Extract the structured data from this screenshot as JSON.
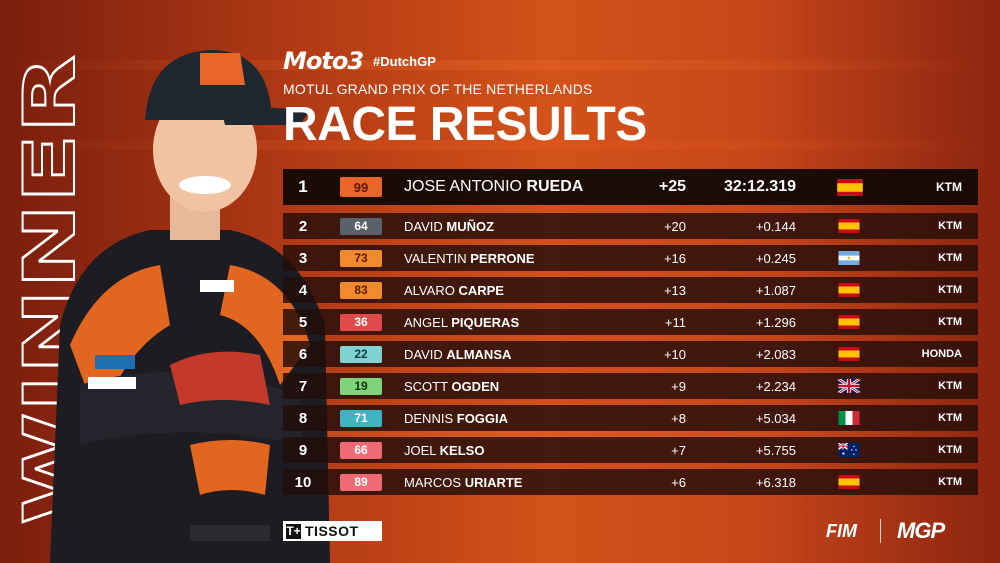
{
  "graphic": {
    "side_text": "WINNER",
    "brand": "Moto3",
    "hashtag": "#DutchGP",
    "event_name": "MOTUL GRAND PRIX OF THE NETHERLANDS",
    "title": "RACE RESULTS"
  },
  "results": [
    {
      "pos": "1",
      "number": "99",
      "first": "JOSE ANTONIO",
      "last": "RUEDA",
      "points": "+25",
      "time": "32:12.319",
      "flag": "spain-flag",
      "team": "KTM",
      "badge_bg": "#e8662a",
      "badge_fg": "#5a1a08"
    },
    {
      "pos": "2",
      "number": "64",
      "first": "DAVID",
      "last": "MUÑOZ",
      "points": "+20",
      "time": "+0.144",
      "flag": "spain-flag",
      "team": "KTM",
      "badge_bg": "#59616a",
      "badge_fg": "#ffffff"
    },
    {
      "pos": "3",
      "number": "73",
      "first": "VALENTIN",
      "last": "PERRONE",
      "points": "+16",
      "time": "+0.245",
      "flag": "argentina-flag",
      "team": "KTM",
      "badge_bg": "#f08a2c",
      "badge_fg": "#5a1a08"
    },
    {
      "pos": "4",
      "number": "83",
      "first": "ALVARO",
      "last": "CARPE",
      "points": "+13",
      "time": "+1.087",
      "flag": "spain-flag",
      "team": "KTM",
      "badge_bg": "#f08a2c",
      "badge_fg": "#5a1a08"
    },
    {
      "pos": "5",
      "number": "36",
      "first": "ANGEL",
      "last": "PIQUERAS",
      "points": "+11",
      "time": "+1.296",
      "flag": "spain-flag",
      "team": "KTM",
      "badge_bg": "#e04a4a",
      "badge_fg": "#ffffff"
    },
    {
      "pos": "6",
      "number": "22",
      "first": "DAVID",
      "last": "ALMANSA",
      "points": "+10",
      "time": "+2.083",
      "flag": "spain-flag",
      "team": "HONDA",
      "badge_bg": "#7fd3d3",
      "badge_fg": "#0f3b3b"
    },
    {
      "pos": "7",
      "number": "19",
      "first": "SCOTT",
      "last": "OGDEN",
      "points": "+9",
      "time": "+2.234",
      "flag": "uk-flag",
      "team": "KTM",
      "badge_bg": "#7fd37a",
      "badge_fg": "#12330f"
    },
    {
      "pos": "8",
      "number": "71",
      "first": "DENNIS",
      "last": "FOGGIA",
      "points": "+8",
      "time": "+5.034",
      "flag": "italy-flag",
      "team": "KTM",
      "badge_bg": "#3fb3c2",
      "badge_fg": "#ffffff"
    },
    {
      "pos": "9",
      "number": "66",
      "first": "JOEL",
      "last": "KELSO",
      "points": "+7",
      "time": "+5.755",
      "flag": "australia-flag",
      "team": "KTM",
      "badge_bg": "#ef6a74",
      "badge_fg": "#ffffff"
    },
    {
      "pos": "10",
      "number": "89",
      "first": "MARCOS",
      "last": "URIARTE",
      "points": "+6",
      "time": "+6.318",
      "flag": "spain-flag",
      "team": "KTM",
      "badge_bg": "#ef6a74",
      "badge_fg": "#ffffff"
    }
  ],
  "footer": {
    "sponsor": "TISSOT",
    "sponsor_mark": "T+",
    "fim": "FIM",
    "mgp": "MGP"
  }
}
